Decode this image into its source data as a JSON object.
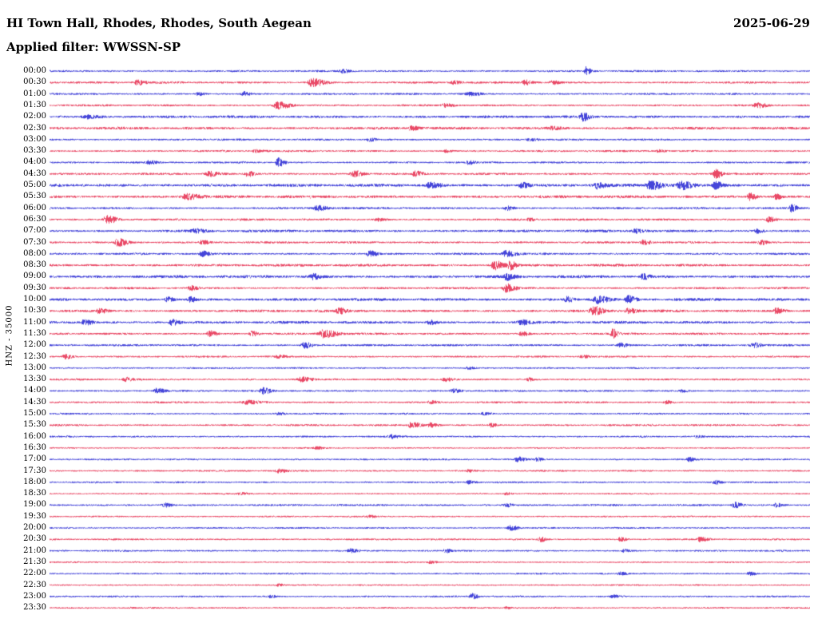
{
  "header": {
    "station_title": "HI Town Hall, Rhodes, Rhodes, South Aegean",
    "date": "2025-06-29",
    "filter_label": "Applied filter: WWSSN-SP"
  },
  "axis": {
    "channel_label": "HNZ - 35000"
  },
  "chart_data": {
    "type": "line",
    "variant": "helicorder-seismogram",
    "title": "HI Town Hall, Rhodes, Rhodes, South Aegean",
    "subtitle": "Applied filter: WWSSN-SP",
    "date": "2025-06-29",
    "channel": "HNZ",
    "scale": "35000",
    "minutes_per_row": 30,
    "seed": 20250629,
    "colors": {
      "blue": "#1515cf",
      "red": "#e31b3f"
    },
    "rows": [
      {
        "label": "00:00",
        "color": "blue",
        "base": 0.9,
        "bursts": [
          [
            0.385,
            2.2
          ],
          [
            0.705,
            5.0,
            0.004
          ]
        ]
      },
      {
        "label": "00:30",
        "color": "red",
        "base": 1.0,
        "bursts": [
          [
            0.115,
            2.5,
            0.008
          ],
          [
            0.345,
            5.0,
            0.01
          ],
          [
            0.53,
            2.0
          ],
          [
            0.625,
            3.0
          ],
          [
            0.66,
            2.5,
            0.005
          ]
        ]
      },
      {
        "label": "01:00",
        "color": "blue",
        "base": 0.9,
        "bursts": [
          [
            0.195,
            2.0,
            0.005
          ],
          [
            0.255,
            2.5
          ],
          [
            0.55,
            2.0,
            0.01
          ]
        ]
      },
      {
        "label": "01:30",
        "color": "red",
        "base": 0.9,
        "bursts": [
          [
            0.3,
            4.5,
            0.01
          ],
          [
            0.52,
            2.0,
            0.008
          ],
          [
            0.93,
            2.5,
            0.008
          ]
        ]
      },
      {
        "label": "02:00",
        "color": "blue",
        "base": 1.2,
        "bursts": [
          [
            0.05,
            2.0,
            0.01
          ],
          [
            0.7,
            5.0,
            0.005
          ]
        ]
      },
      {
        "label": "02:30",
        "color": "red",
        "base": 1.2,
        "bursts": [
          [
            0.475,
            2.5
          ],
          [
            0.66,
            2.0,
            0.008
          ]
        ]
      },
      {
        "label": "03:00",
        "color": "blue",
        "base": 0.9,
        "bursts": [
          [
            0.42,
            2.0
          ],
          [
            0.63,
            1.8
          ]
        ]
      },
      {
        "label": "03:30",
        "color": "red",
        "base": 0.9,
        "bursts": [
          [
            0.27,
            1.8
          ],
          [
            0.52,
            1.8,
            0.005
          ],
          [
            0.8,
            1.8,
            0.005
          ]
        ]
      },
      {
        "label": "04:00",
        "color": "blue",
        "base": 0.9,
        "bursts": [
          [
            0.13,
            2.0
          ],
          [
            0.3,
            5.5,
            0.005
          ],
          [
            0.55,
            2.0,
            0.005
          ]
        ]
      },
      {
        "label": "04:30",
        "color": "red",
        "base": 1.0,
        "bursts": [
          [
            0.21,
            3.0,
            0.008
          ],
          [
            0.26,
            3.0
          ],
          [
            0.4,
            3.5,
            0.008
          ],
          [
            0.48,
            3.0
          ],
          [
            0.875,
            5.0
          ]
        ]
      },
      {
        "label": "05:00",
        "color": "blue",
        "base": 1.4,
        "bursts": [
          [
            0.5,
            3.5,
            0.008
          ],
          [
            0.62,
            3.0
          ],
          [
            0.72,
            4.0
          ],
          [
            0.79,
            5.0,
            0.01
          ],
          [
            0.83,
            5.0,
            0.008
          ],
          [
            0.875,
            4.0
          ]
        ]
      },
      {
        "label": "05:30",
        "color": "red",
        "base": 1.3,
        "bursts": [
          [
            0.18,
            3.5,
            0.01
          ],
          [
            0.92,
            4.0
          ],
          [
            0.955,
            3.0,
            0.005
          ]
        ]
      },
      {
        "label": "06:00",
        "color": "blue",
        "base": 1.0,
        "bursts": [
          [
            0.35,
            3.0,
            0.01
          ],
          [
            0.6,
            2.5
          ],
          [
            0.975,
            4.5,
            0.005
          ]
        ]
      },
      {
        "label": "06:30",
        "color": "red",
        "base": 1.0,
        "bursts": [
          [
            0.075,
            5.0,
            0.008
          ],
          [
            0.43,
            2.0
          ],
          [
            0.63,
            2.0,
            0.005
          ],
          [
            0.945,
            3.0
          ]
        ]
      },
      {
        "label": "07:00",
        "color": "blue",
        "base": 1.2,
        "bursts": [
          [
            0.19,
            2.5,
            0.008
          ],
          [
            0.77,
            2.5
          ],
          [
            0.93,
            2.5,
            0.005
          ]
        ]
      },
      {
        "label": "07:30",
        "color": "red",
        "base": 1.0,
        "bursts": [
          [
            0.09,
            4.5,
            0.008
          ],
          [
            0.2,
            2.5
          ],
          [
            0.78,
            3.0
          ],
          [
            0.935,
            3.0,
            0.005
          ]
        ]
      },
      {
        "label": "08:00",
        "color": "blue",
        "base": 1.0,
        "bursts": [
          [
            0.2,
            3.0
          ],
          [
            0.42,
            3.5
          ],
          [
            0.6,
            4.0,
            0.008
          ]
        ]
      },
      {
        "label": "08:30",
        "color": "red",
        "base": 1.2,
        "bursts": [
          [
            0.585,
            5.5,
            0.008
          ],
          [
            0.605,
            5.0,
            0.005
          ]
        ]
      },
      {
        "label": "09:00",
        "color": "blue",
        "base": 1.3,
        "bursts": [
          [
            0.345,
            3.5
          ],
          [
            0.6,
            4.0
          ],
          [
            0.78,
            3.0
          ]
        ]
      },
      {
        "label": "09:30",
        "color": "red",
        "base": 1.0,
        "bursts": [
          [
            0.185,
            2.5
          ],
          [
            0.6,
            5.0,
            0.008
          ]
        ]
      },
      {
        "label": "10:00",
        "color": "blue",
        "base": 1.3,
        "bursts": [
          [
            0.155,
            2.5
          ],
          [
            0.185,
            3.0,
            0.005
          ],
          [
            0.68,
            3.0
          ],
          [
            0.72,
            4.5,
            0.008
          ],
          [
            0.76,
            4.0
          ]
        ]
      },
      {
        "label": "10:30",
        "color": "red",
        "base": 1.2,
        "bursts": [
          [
            0.065,
            3.0
          ],
          [
            0.38,
            3.0
          ],
          [
            0.715,
            5.0,
            0.008
          ],
          [
            0.76,
            3.5
          ],
          [
            0.955,
            3.5
          ]
        ]
      },
      {
        "label": "11:00",
        "color": "blue",
        "base": 1.2,
        "bursts": [
          [
            0.045,
            3.5
          ],
          [
            0.16,
            3.5
          ],
          [
            0.5,
            2.5
          ],
          [
            0.62,
            3.0,
            0.008
          ]
        ]
      },
      {
        "label": "11:30",
        "color": "red",
        "base": 1.0,
        "bursts": [
          [
            0.21,
            3.5
          ],
          [
            0.265,
            3.0,
            0.005
          ],
          [
            0.36,
            5.0,
            0.01
          ],
          [
            0.62,
            2.5
          ],
          [
            0.74,
            6.0,
            0.004
          ]
        ]
      },
      {
        "label": "12:00",
        "color": "blue",
        "base": 1.0,
        "bursts": [
          [
            0.335,
            3.5
          ],
          [
            0.75,
            2.5
          ],
          [
            0.925,
            3.0
          ]
        ]
      },
      {
        "label": "12:30",
        "color": "red",
        "base": 0.9,
        "bursts": [
          [
            0.02,
            3.0
          ],
          [
            0.3,
            1.8
          ],
          [
            0.7,
            1.8
          ]
        ]
      },
      {
        "label": "13:00",
        "color": "blue",
        "base": 0.8,
        "bursts": [
          [
            0.55,
            1.5
          ]
        ]
      },
      {
        "label": "13:30",
        "color": "red",
        "base": 0.9,
        "bursts": [
          [
            0.1,
            2.5
          ],
          [
            0.33,
            3.0,
            0.008
          ],
          [
            0.52,
            2.5
          ],
          [
            0.63,
            2.0,
            0.005
          ]
        ]
      },
      {
        "label": "14:00",
        "color": "blue",
        "base": 0.9,
        "bursts": [
          [
            0.14,
            3.0
          ],
          [
            0.28,
            3.5
          ],
          [
            0.53,
            2.5
          ],
          [
            0.83,
            2.0,
            0.005
          ]
        ]
      },
      {
        "label": "14:30",
        "color": "red",
        "base": 0.9,
        "bursts": [
          [
            0.26,
            2.0,
            0.01
          ],
          [
            0.5,
            1.8
          ],
          [
            0.81,
            1.8,
            0.005
          ]
        ]
      },
      {
        "label": "15:00",
        "color": "blue",
        "base": 0.8,
        "bursts": [
          [
            0.3,
            1.5
          ],
          [
            0.57,
            1.5,
            0.005
          ]
        ]
      },
      {
        "label": "15:30",
        "color": "red",
        "base": 0.9,
        "bursts": [
          [
            0.475,
            3.5,
            0.008
          ],
          [
            0.5,
            3.0,
            0.005
          ],
          [
            0.58,
            2.5,
            0.005
          ]
        ]
      },
      {
        "label": "16:00",
        "color": "blue",
        "base": 0.8,
        "bursts": [
          [
            0.45,
            2.0
          ],
          [
            0.85,
            1.5,
            0.005
          ]
        ]
      },
      {
        "label": "16:30",
        "color": "red",
        "base": 0.7,
        "bursts": [
          [
            0.35,
            1.5
          ]
        ]
      },
      {
        "label": "17:00",
        "color": "blue",
        "base": 0.8,
        "bursts": [
          [
            0.615,
            3.0
          ],
          [
            0.64,
            2.5,
            0.005
          ],
          [
            0.84,
            2.5,
            0.005
          ]
        ]
      },
      {
        "label": "17:30",
        "color": "red",
        "base": 0.8,
        "bursts": [
          [
            0.3,
            2.5
          ],
          [
            0.55,
            1.5,
            0.005
          ]
        ]
      },
      {
        "label": "18:00",
        "color": "blue",
        "base": 0.8,
        "bursts": [
          [
            0.55,
            2.0
          ],
          [
            0.875,
            2.5
          ]
        ]
      },
      {
        "label": "18:30",
        "color": "red",
        "base": 0.7,
        "bursts": [
          [
            0.25,
            1.5
          ],
          [
            0.6,
            1.5,
            0.005
          ]
        ]
      },
      {
        "label": "19:00",
        "color": "blue",
        "base": 0.9,
        "bursts": [
          [
            0.15,
            2.5
          ],
          [
            0.6,
            2.0
          ],
          [
            0.9,
            3.5
          ],
          [
            0.955,
            2.5,
            0.005
          ]
        ]
      },
      {
        "label": "19:30",
        "color": "red",
        "base": 0.7,
        "bursts": [
          [
            0.42,
            1.5
          ]
        ]
      },
      {
        "label": "20:00",
        "color": "blue",
        "base": 0.8,
        "bursts": [
          [
            0.605,
            3.5
          ]
        ]
      },
      {
        "label": "20:30",
        "color": "red",
        "base": 0.8,
        "bursts": [
          [
            0.645,
            3.0,
            0.005
          ],
          [
            0.75,
            2.5,
            0.005
          ],
          [
            0.855,
            3.0
          ]
        ]
      },
      {
        "label": "21:00",
        "color": "blue",
        "base": 0.8,
        "bursts": [
          [
            0.395,
            2.5
          ],
          [
            0.52,
            2.0,
            0.005
          ],
          [
            0.755,
            1.8,
            0.005
          ]
        ]
      },
      {
        "label": "21:30",
        "color": "red",
        "base": 0.7,
        "bursts": [
          [
            0.5,
            1.5
          ]
        ]
      },
      {
        "label": "22:00",
        "color": "blue",
        "base": 0.8,
        "bursts": [
          [
            0.75,
            1.5,
            0.005
          ],
          [
            0.92,
            2.0
          ]
        ]
      },
      {
        "label": "22:30",
        "color": "red",
        "base": 0.7,
        "bursts": [
          [
            0.3,
            1.3,
            0.005
          ]
        ]
      },
      {
        "label": "23:00",
        "color": "blue",
        "base": 0.8,
        "bursts": [
          [
            0.29,
            1.8,
            0.005
          ],
          [
            0.555,
            3.5,
            0.005
          ],
          [
            0.74,
            2.0
          ]
        ]
      },
      {
        "label": "23:30",
        "color": "red",
        "base": 0.7,
        "bursts": [
          [
            0.6,
            1.3,
            0.005
          ]
        ]
      }
    ]
  }
}
